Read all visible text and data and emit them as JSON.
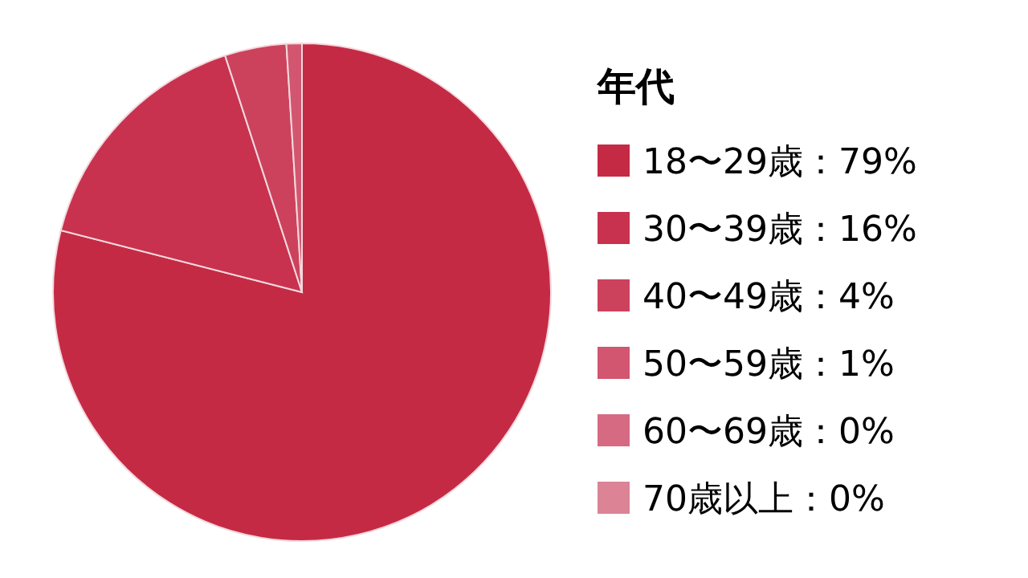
{
  "chart_data": {
    "type": "pie",
    "legend_title": "年代",
    "legend": "right",
    "categories": [
      "18〜29歳：79%",
      "30〜39歳：16%",
      "40〜49歳：4%",
      "50〜59歳：1%",
      "60〜69歳：0%",
      "70歳以上：0%"
    ],
    "values": [
      79,
      16,
      4,
      1,
      0,
      0
    ],
    "colors": [
      "#c52a44",
      "#c8324f",
      "#cc425c",
      "#d2566f",
      "#d66a82",
      "#dc8396"
    ]
  }
}
